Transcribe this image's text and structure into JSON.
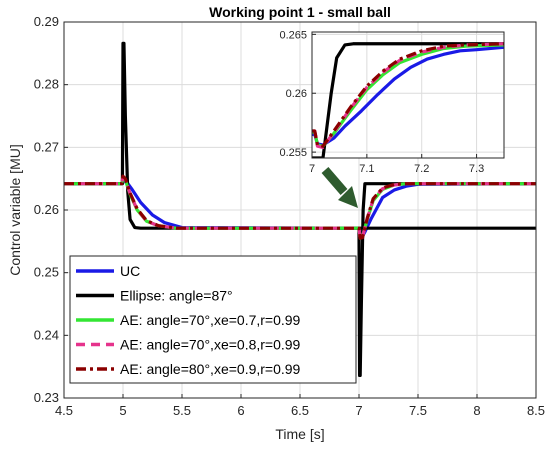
{
  "colors": {
    "uc": "#1a1ae6",
    "ellipse": "#000000",
    "ae1": "#33e633",
    "ae2": "#e6338c",
    "ae3": "#8b0000",
    "grid": "#dcdcdc",
    "arrow": "#2e5b2e"
  },
  "chart_data": [
    {
      "type": "line",
      "title": "Working point 1  - small ball",
      "xlabel": "Time [s]",
      "ylabel": "Control variable [MU]",
      "xlim": [
        4.5,
        8.5
      ],
      "ylim": [
        0.23,
        0.29
      ],
      "xticks": [
        "4.5",
        "5",
        "5.5",
        "6",
        "6.5",
        "7",
        "7.5",
        "8",
        "8.5"
      ],
      "yticks": [
        "0.23",
        "0.24",
        "0.25",
        "0.26",
        "0.27",
        "0.28",
        "0.29"
      ],
      "grid": true,
      "legend_position": "bottom-left",
      "series": [
        {
          "name": "UC",
          "color_key": "uc",
          "style": "solid",
          "x": [
            4.5,
            4.99,
            5.0,
            5.03,
            5.08,
            5.15,
            5.25,
            5.35,
            5.5,
            7.0,
            7.02,
            7.05,
            7.1,
            7.2,
            7.3,
            7.4,
            7.5,
            8.5
          ],
          "y": [
            0.2642,
            0.2642,
            0.2645,
            0.2645,
            0.2632,
            0.2612,
            0.2592,
            0.258,
            0.2572,
            0.2571,
            0.2555,
            0.2565,
            0.2585,
            0.262,
            0.2632,
            0.2638,
            0.2641,
            0.2642
          ]
        },
        {
          "name": "Ellipse: angle=87°",
          "color_key": "ellipse",
          "style": "solid",
          "x": [
            4.5,
            4.995,
            5.0,
            5.008,
            5.02,
            5.04,
            5.06,
            5.1,
            5.15,
            8.5
          ],
          "y": [
            0.2642,
            0.2642,
            0.2866,
            0.2866,
            0.275,
            0.263,
            0.2585,
            0.2572,
            0.2571,
            0.2571
          ],
          "x2": [
            6.99,
            7.0,
            7.005,
            7.01,
            7.02,
            7.035,
            7.05,
            8.5
          ],
          "y2": [
            0.2571,
            0.2571,
            0.2336,
            0.2336,
            0.245,
            0.26,
            0.2642,
            0.2642
          ]
        },
        {
          "name": "AE: angle=70°,xe=0.7,r=0.99",
          "color_key": "ae1",
          "style": "solid",
          "x": [
            4.5,
            4.99,
            5.0,
            5.02,
            5.06,
            5.12,
            5.2,
            5.3,
            5.45,
            7.0,
            7.01,
            7.03,
            7.07,
            7.12,
            7.2,
            7.3,
            7.4,
            8.5
          ],
          "y": [
            0.2642,
            0.2642,
            0.2652,
            0.2648,
            0.2625,
            0.26,
            0.2582,
            0.2575,
            0.2571,
            0.2571,
            0.2555,
            0.2558,
            0.2585,
            0.2615,
            0.2633,
            0.264,
            0.2642,
            0.2642
          ]
        },
        {
          "name": "AE: angle=70°,xe=0.8,r=0.99",
          "color_key": "ae2",
          "style": "dashed",
          "x": [
            4.5,
            4.99,
            5.0,
            5.02,
            5.06,
            5.12,
            5.2,
            5.3,
            5.45,
            7.0,
            7.01,
            7.03,
            7.07,
            7.12,
            7.2,
            7.3,
            7.4,
            8.5
          ],
          "y": [
            0.2642,
            0.2642,
            0.2653,
            0.2649,
            0.2626,
            0.2601,
            0.2582,
            0.2575,
            0.2571,
            0.2571,
            0.2554,
            0.2557,
            0.2586,
            0.2617,
            0.2634,
            0.264,
            0.2642,
            0.2642
          ]
        },
        {
          "name": "AE: angle=80°,xe=0.9,r=0.99",
          "color_key": "ae3",
          "style": "dashdot",
          "x": [
            4.5,
            4.99,
            5.0,
            5.02,
            5.06,
            5.12,
            5.2,
            5.3,
            5.45,
            7.0,
            7.01,
            7.03,
            7.07,
            7.12,
            7.2,
            7.3,
            7.4,
            8.5
          ],
          "y": [
            0.2642,
            0.2642,
            0.2654,
            0.265,
            0.2627,
            0.2602,
            0.2583,
            0.2575,
            0.2571,
            0.2571,
            0.2555,
            0.2556,
            0.2587,
            0.2618,
            0.2635,
            0.2641,
            0.2642,
            0.2642
          ]
        }
      ]
    },
    {
      "type": "line",
      "title": "",
      "xlim": [
        7.0,
        7.35
      ],
      "ylim": [
        0.2545,
        0.2652
      ],
      "xticks": [
        "7",
        "7.1",
        "7.2",
        "7.3"
      ],
      "yticks": [
        "0.255",
        "0.26",
        "0.265"
      ],
      "grid": true,
      "series": [
        {
          "name": "UC",
          "color_key": "uc",
          "style": "solid",
          "x": [
            7.0,
            7.005,
            7.01,
            7.02,
            7.04,
            7.06,
            7.09,
            7.12,
            7.15,
            7.18,
            7.21,
            7.24,
            7.27,
            7.3,
            7.35
          ],
          "y": [
            0.2565,
            0.2565,
            0.2557,
            0.2556,
            0.2562,
            0.2572,
            0.2585,
            0.2599,
            0.2612,
            0.2622,
            0.2629,
            0.2633,
            0.2636,
            0.2637,
            0.2639
          ]
        },
        {
          "name": "Ellipse: angle=87°",
          "color_key": "ellipse",
          "style": "solid",
          "x": [
            7.0,
            7.02,
            7.035,
            7.045,
            7.06,
            7.075,
            7.35
          ],
          "y": [
            0.2545,
            0.2545,
            0.26,
            0.263,
            0.2641,
            0.2642,
            0.2642
          ]
        },
        {
          "name": "AE: angle=70°,xe=0.7,r=0.99",
          "color_key": "ae1",
          "style": "solid",
          "x": [
            7.0,
            7.005,
            7.01,
            7.02,
            7.04,
            7.07,
            7.1,
            7.13,
            7.16,
            7.2,
            7.24,
            7.28,
            7.35
          ],
          "y": [
            0.2567,
            0.2567,
            0.2556,
            0.2555,
            0.2566,
            0.2585,
            0.2603,
            0.2616,
            0.2626,
            0.2633,
            0.2638,
            0.264,
            0.2641
          ]
        },
        {
          "name": "AE: angle=70°,xe=0.8,r=0.99",
          "color_key": "ae2",
          "style": "dashed",
          "x": [
            7.0,
            7.005,
            7.01,
            7.02,
            7.04,
            7.07,
            7.1,
            7.13,
            7.16,
            7.2,
            7.24,
            7.28,
            7.35
          ],
          "y": [
            0.2568,
            0.2568,
            0.2555,
            0.2554,
            0.2567,
            0.2587,
            0.2605,
            0.2618,
            0.2628,
            0.2635,
            0.2639,
            0.2641,
            0.2642
          ]
        },
        {
          "name": "AE: angle=80°,xe=0.9,r=0.99",
          "color_key": "ae3",
          "style": "dashdot",
          "x": [
            7.0,
            7.005,
            7.01,
            7.02,
            7.04,
            7.07,
            7.1,
            7.13,
            7.16,
            7.2,
            7.24,
            7.28,
            7.35
          ],
          "y": [
            0.2568,
            0.2568,
            0.2556,
            0.2555,
            0.2568,
            0.2588,
            0.2606,
            0.2619,
            0.2629,
            0.2636,
            0.264,
            0.2641,
            0.2642
          ]
        }
      ]
    }
  ]
}
